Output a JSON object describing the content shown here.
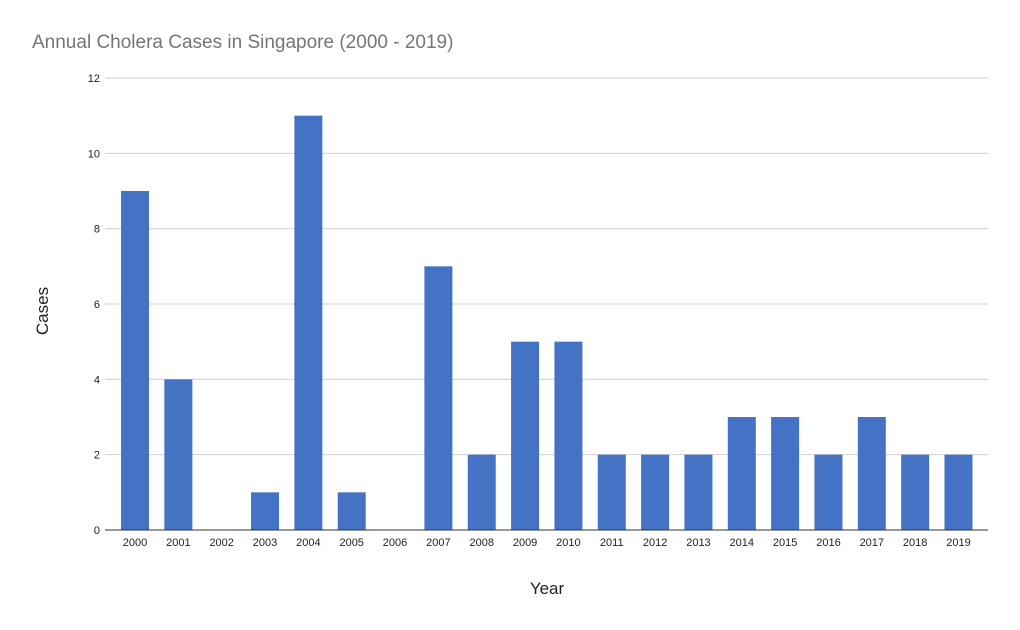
{
  "chart_data": {
    "type": "bar",
    "title": "Annual Cholera Cases in Singapore (2000 - 2019)",
    "xlabel": "Year",
    "ylabel": "Cases",
    "categories": [
      "2000",
      "2001",
      "2002",
      "2003",
      "2004",
      "2005",
      "2006",
      "2007",
      "2008",
      "2009",
      "2010",
      "2011",
      "2012",
      "2013",
      "2014",
      "2015",
      "2016",
      "2017",
      "2018",
      "2019"
    ],
    "values": [
      9,
      4,
      0,
      1,
      11,
      1,
      0,
      7,
      2,
      5,
      5,
      2,
      2,
      2,
      3,
      3,
      2,
      3,
      2,
      2
    ],
    "ylim": [
      0,
      12
    ],
    "yticks": [
      0,
      2,
      4,
      6,
      8,
      10,
      12
    ],
    "grid": true,
    "legend": "none",
    "bar_color": "#4472c4"
  }
}
